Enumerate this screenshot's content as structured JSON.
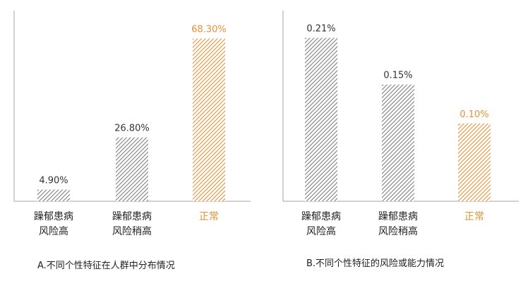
{
  "colors": {
    "normal": "#e69138",
    "risk": "#7f7f7f",
    "axis": "#a6a6a6"
  },
  "chart_data": [
    {
      "type": "bar",
      "categories": [
        "躁郁患病\n风险高",
        "躁郁患病\n风险稍高",
        "正常"
      ],
      "values": [
        4.9,
        26.8,
        68.3
      ],
      "value_labels": [
        "4.90%",
        "26.80%",
        "68.30%"
      ],
      "ylim": [
        0,
        80
      ],
      "grid": false,
      "caption": "A.不同个性特征在人群中分布情况"
    },
    {
      "type": "bar",
      "categories": [
        "躁郁患病\n风险高",
        "躁郁患病\n风险稍高",
        "正常"
      ],
      "values": [
        0.21,
        0.15,
        0.1
      ],
      "value_labels": [
        "0.21%",
        "0.15%",
        "0.10%"
      ],
      "ylim": [
        0,
        0.245
      ],
      "grid": false,
      "caption": "B.不同个性特征的风险或能力情况"
    }
  ]
}
